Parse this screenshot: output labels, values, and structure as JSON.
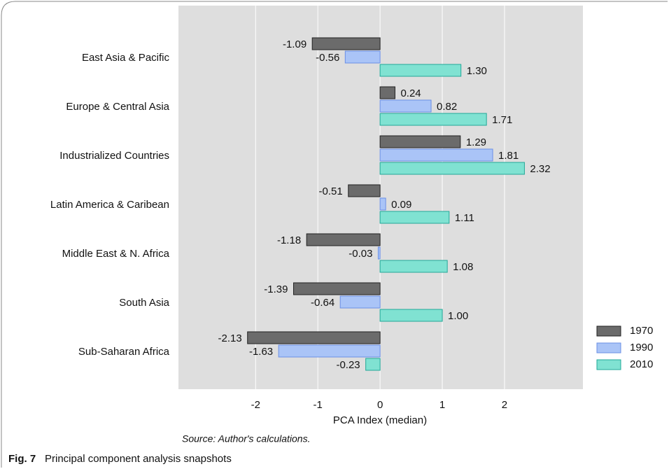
{
  "chart_data": {
    "type": "barh",
    "xlabel": "PCA Index (median)",
    "source": "Source: Author's calculations.",
    "figure_label": "Fig. 7",
    "caption": "Principal component analysis snapshots",
    "categories": [
      "East Asia & Pacific",
      "Europe & Central Asia",
      "Industrialized Countries",
      "Latin America & Caribean",
      "Middle East & N. Africa",
      "South Asia",
      "Sub-Saharan Africa"
    ],
    "series": [
      {
        "name": "1970",
        "color": "#6b6b6b",
        "values": [
          -1.09,
          0.24,
          1.29,
          -0.51,
          -1.18,
          -1.39,
          -2.13
        ],
        "value_labels": [
          "-1.09",
          "0.24",
          "1.29",
          "-0.51",
          "-1.18",
          "-1.39",
          "-2.13"
        ]
      },
      {
        "name": "1990",
        "color": "#aac4f7",
        "values": [
          -0.56,
          0.82,
          1.81,
          0.09,
          -0.03,
          -0.64,
          -1.63
        ],
        "value_labels": [
          "-0.56",
          "0.82",
          "1.81",
          "0.09",
          "-0.03",
          "-0.64",
          "-1.63"
        ]
      },
      {
        "name": "2010",
        "color": "#80e2d2",
        "values": [
          1.3,
          1.71,
          2.32,
          1.11,
          1.08,
          1.0,
          -0.23
        ],
        "value_labels": [
          "1.30",
          "1.71",
          "2.32",
          "1.11",
          "1.08",
          "1.00",
          "-0.23"
        ]
      }
    ],
    "xlim": [
      -3.24,
      3.26
    ],
    "xticks": [
      -2,
      -1,
      0,
      1,
      2
    ],
    "grid": true,
    "legend": "right"
  }
}
